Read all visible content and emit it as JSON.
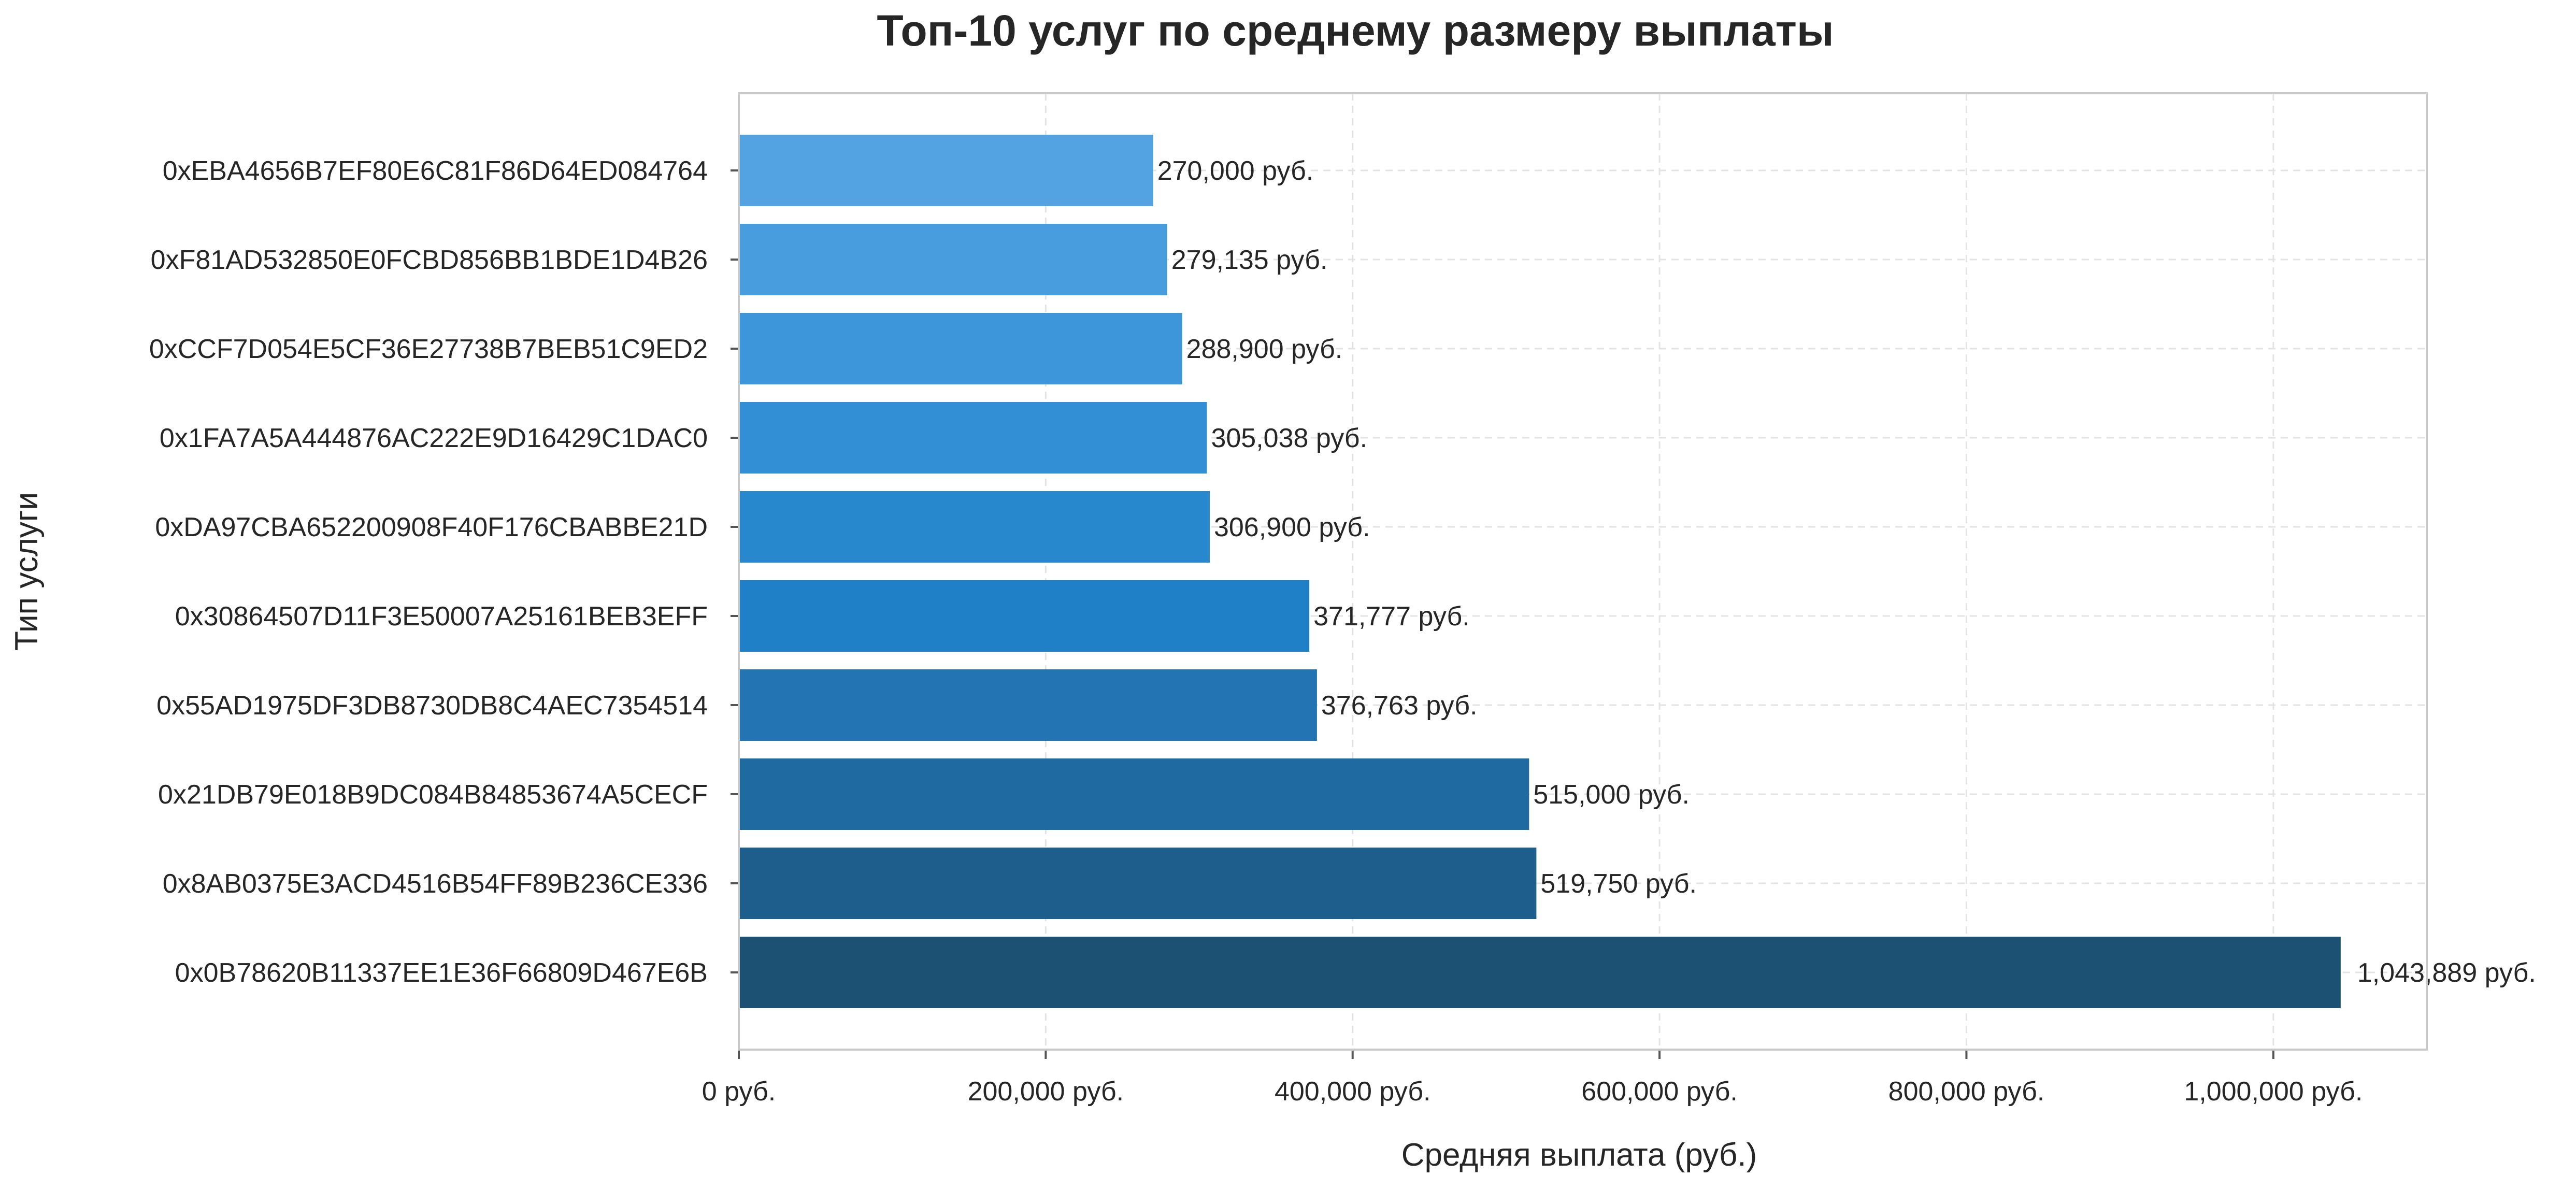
{
  "chart_data": {
    "type": "bar",
    "orientation": "horizontal",
    "title": "Топ-10 услуг по среднему размеру выплаты",
    "xlabel": "Средняя выплата (руб.)",
    "ylabel": "Тип услуги",
    "categories": [
      "0xEBA4656B7EF80E6C81F86D64ED084764",
      "0xF81AD532850E0FCBD856BB1BDE1D4B26",
      "0xCCF7D054E5CF36E27738B7BEB51C9ED2",
      "0x1FA7A5A444876AC222E9D16429C1DAC0",
      "0xDA97CBA652200908F40F176CBABBE21D",
      "0x30864507D11F3E50007A25161BEB3EFF",
      "0x55AD1975DF3DB8730DB8C4AEC7354514",
      "0x21DB79E018B9DC084B84853674A5CECF",
      "0x8AB0375E3ACD4516B54FF89B236CE336",
      "0x0B78620B11337EE1E36F66809D467E6B"
    ],
    "values": [
      270000,
      279135,
      288900,
      305038,
      306900,
      371777,
      376763,
      515000,
      519750,
      1043889
    ],
    "value_labels": [
      "270,000 руб.",
      "279,135 руб.",
      "288,900 руб.",
      "305,038 руб.",
      "306,900 руб.",
      "371,777 руб.",
      "376,763 руб.",
      "515,000 руб.",
      "519,750 руб.",
      "1,043,889 руб."
    ],
    "colors": [
      "#53a3e2",
      "#489ddf",
      "#3d96da",
      "#328fd6",
      "#2888cd",
      "#1f80c8",
      "#2374b3",
      "#1f6aa0",
      "#1e5e8d",
      "#1c5173"
    ],
    "xlim": [
      0,
      1100000
    ],
    "xticks": [
      0,
      200000,
      400000,
      600000,
      800000,
      1000000
    ],
    "xtick_labels": [
      "0 руб.",
      "200,000 руб.",
      "400,000 руб.",
      "600,000 руб.",
      "800,000 руб.",
      "1,000,000 руб."
    ],
    "grid": true,
    "legend": "none"
  }
}
